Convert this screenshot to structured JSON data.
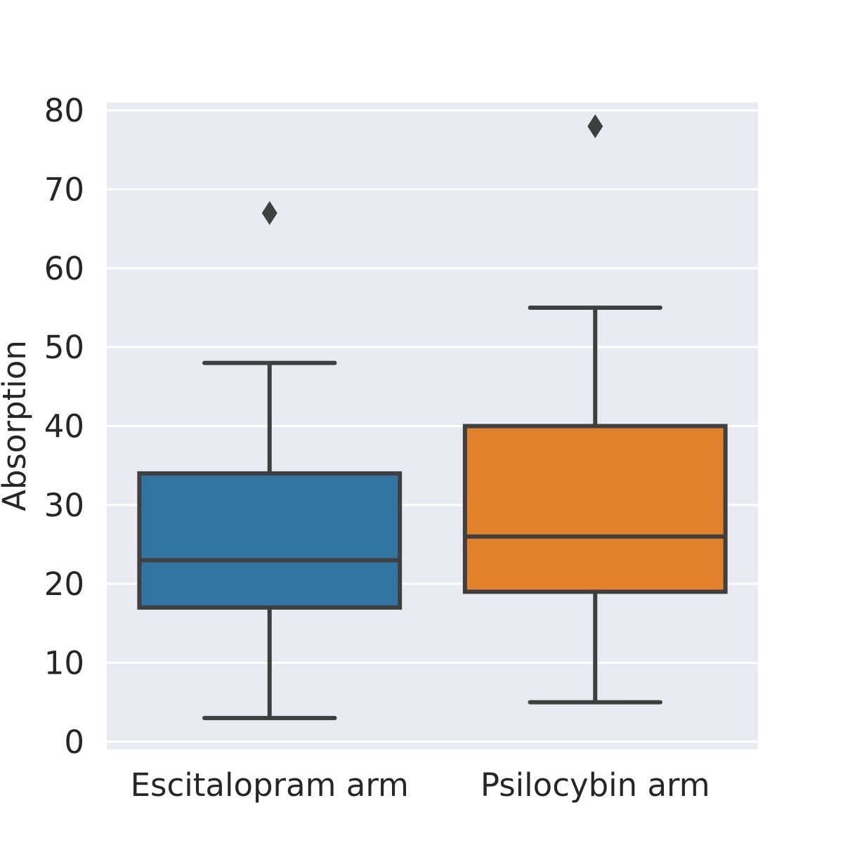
{
  "chart_data": {
    "type": "box",
    "title": "",
    "xlabel": "",
    "ylabel": "Absorption",
    "ylim": [
      -1,
      81
    ],
    "yticks": [
      0,
      10,
      20,
      30,
      40,
      50,
      60,
      70,
      80
    ],
    "grid": true,
    "categories": [
      "Escitalopram arm",
      "Psilocybin arm"
    ],
    "boxes": [
      {
        "category": "Escitalopram arm",
        "whisker_low": 3,
        "q1": 17,
        "median": 23,
        "q3": 34,
        "whisker_high": 48,
        "outliers": [
          67
        ],
        "color": "#3274a1"
      },
      {
        "category": "Psilocybin arm",
        "whisker_low": 5,
        "q1": 19,
        "median": 26,
        "q3": 40,
        "whisker_high": 55,
        "outliers": [
          78
        ],
        "color": "#e1812c"
      }
    ],
    "colors": {
      "plot_background": "#eaeaf2",
      "grid": "#ffffff",
      "line": "#3f3f3f",
      "text": "#262626"
    }
  }
}
